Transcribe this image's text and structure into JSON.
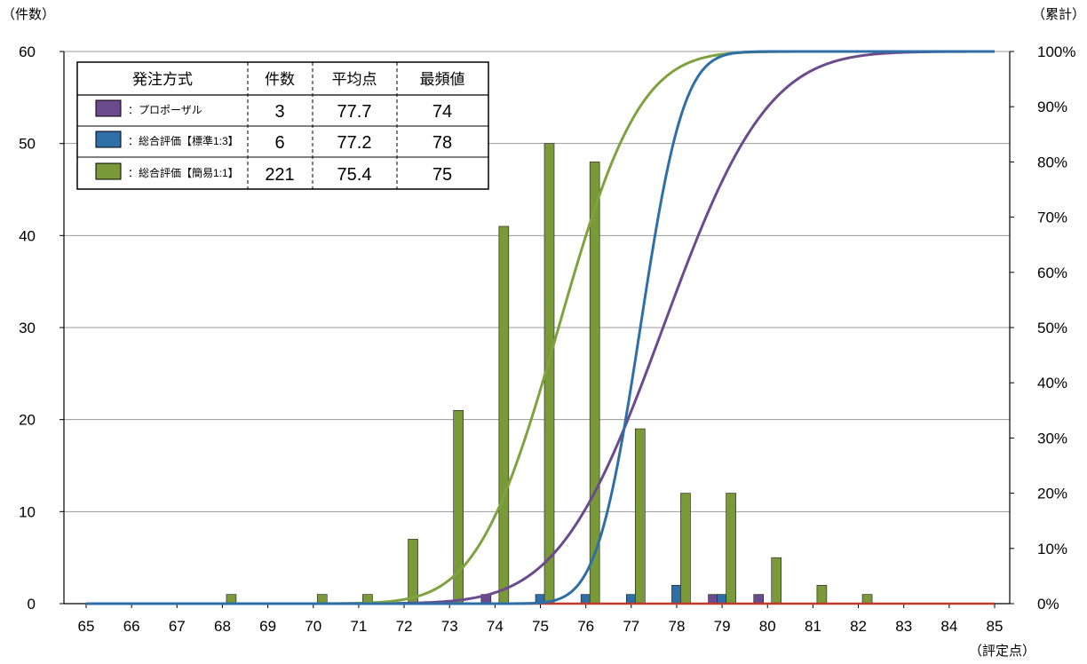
{
  "colors": {
    "proposal": "#6b4a8e",
    "standard": "#2f6fa8",
    "simple": "#7a9a3a",
    "simple_curve": "#7fa23f",
    "baseline": "#c0392b",
    "grid": "#999999",
    "axis": "#000000"
  },
  "chart_data": {
    "type": "bar",
    "left_axis_label": "（件数）",
    "right_axis_label": "（累計）",
    "x_axis_label": "（評定点）",
    "x": [
      65,
      66,
      67,
      68,
      69,
      70,
      71,
      72,
      73,
      74,
      75,
      76,
      77,
      78,
      79,
      80,
      81,
      82,
      83,
      84,
      85
    ],
    "x_tick_labels": [
      "65",
      "66",
      "67",
      "68",
      "69",
      "70",
      "71",
      "72",
      "73",
      "74",
      "75",
      "76",
      "77",
      "78",
      "79",
      "80",
      "81",
      "82",
      "83",
      "84",
      "85"
    ],
    "ylim": [
      0,
      60
    ],
    "y_ticks": [
      0,
      10,
      20,
      30,
      40,
      50,
      60
    ],
    "y_tick_labels": [
      "0",
      "10",
      "20",
      "30",
      "40",
      "50",
      "60"
    ],
    "y2lim": [
      0,
      100
    ],
    "y2_ticks": [
      0,
      10,
      20,
      30,
      40,
      50,
      60,
      70,
      80,
      90,
      100
    ],
    "y2_tick_labels": [
      "0%",
      "10%",
      "20%",
      "30%",
      "40%",
      "50%",
      "60%",
      "70%",
      "80%",
      "90%",
      "100%"
    ],
    "grid": true,
    "legend": {
      "placement": "top-left",
      "headers": [
        "発注方式",
        "件数",
        "平均点",
        "最頻値"
      ],
      "rows": [
        {
          "label": "：プロポーザル",
          "count": "3",
          "mean": "77.7",
          "mode": "74"
        },
        {
          "label": "：総合評価【標準1:3】",
          "count": "6",
          "mean": "77.2",
          "mode": "78"
        },
        {
          "label": "：総合評価【簡易1:1】",
          "count": "221",
          "mean": "75.4",
          "mode": "75"
        }
      ]
    },
    "series": [
      {
        "key": "proposal",
        "values": [
          0,
          0,
          0,
          0,
          0,
          0,
          0,
          0,
          0,
          1,
          0,
          0,
          0,
          0,
          1,
          1,
          0,
          0,
          0,
          0,
          0
        ],
        "cumulative_curve": {
          "mean": 77.7,
          "sd": 1.8
        }
      },
      {
        "key": "standard",
        "values": [
          0,
          0,
          0,
          0,
          0,
          0,
          0,
          0,
          0,
          0,
          1,
          1,
          1,
          2,
          1,
          0,
          0,
          0,
          0,
          0,
          0
        ],
        "cumulative_curve": {
          "mean": 77.2,
          "sd": 0.75
        }
      },
      {
        "key": "simple",
        "values": [
          0,
          0,
          0,
          1,
          0,
          1,
          1,
          7,
          21,
          41,
          50,
          48,
          19,
          12,
          12,
          5,
          2,
          1,
          0,
          0,
          0
        ],
        "cumulative_curve": {
          "mean": 75.4,
          "sd": 1.4
        }
      }
    ]
  }
}
